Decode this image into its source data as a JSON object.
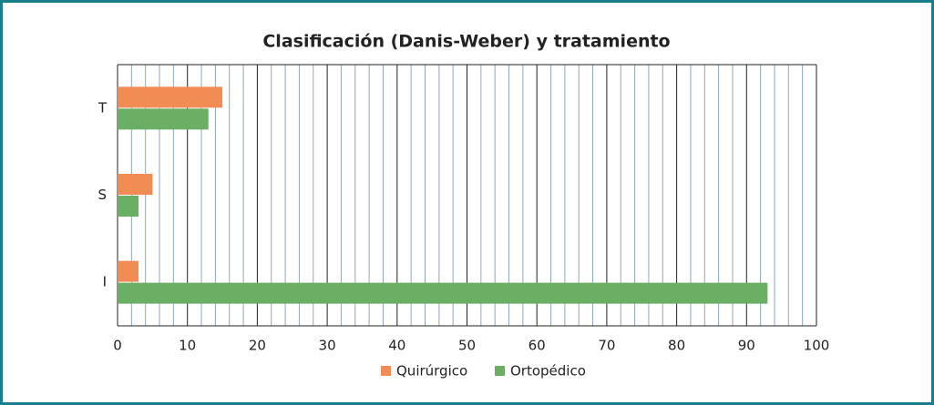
{
  "chart_data": {
    "type": "bar",
    "orientation": "horizontal",
    "title": "Clasificación (Danis-Weber) y tratamiento",
    "categories": [
      "T",
      "S",
      "I"
    ],
    "series": [
      {
        "name": "Quirúrgico",
        "color": "#f28c55",
        "values": [
          15,
          5,
          3
        ]
      },
      {
        "name": "Ortopédico",
        "color": "#6aaf64",
        "values": [
          13,
          3,
          93
        ]
      }
    ],
    "xlim": [
      0,
      100
    ],
    "xticks": [
      0,
      10,
      20,
      30,
      40,
      50,
      60,
      70,
      80,
      90,
      100
    ],
    "xminorticks": [
      2,
      4,
      6,
      8,
      12,
      14,
      16,
      18,
      22,
      24,
      26,
      28,
      32,
      34,
      36,
      38,
      42,
      44,
      46,
      48,
      52,
      54,
      56,
      58,
      62,
      64,
      66,
      68,
      72,
      74,
      76,
      78,
      82,
      84,
      86,
      88,
      92,
      94,
      96,
      98
    ],
    "grid": true,
    "legend": "bottom"
  }
}
